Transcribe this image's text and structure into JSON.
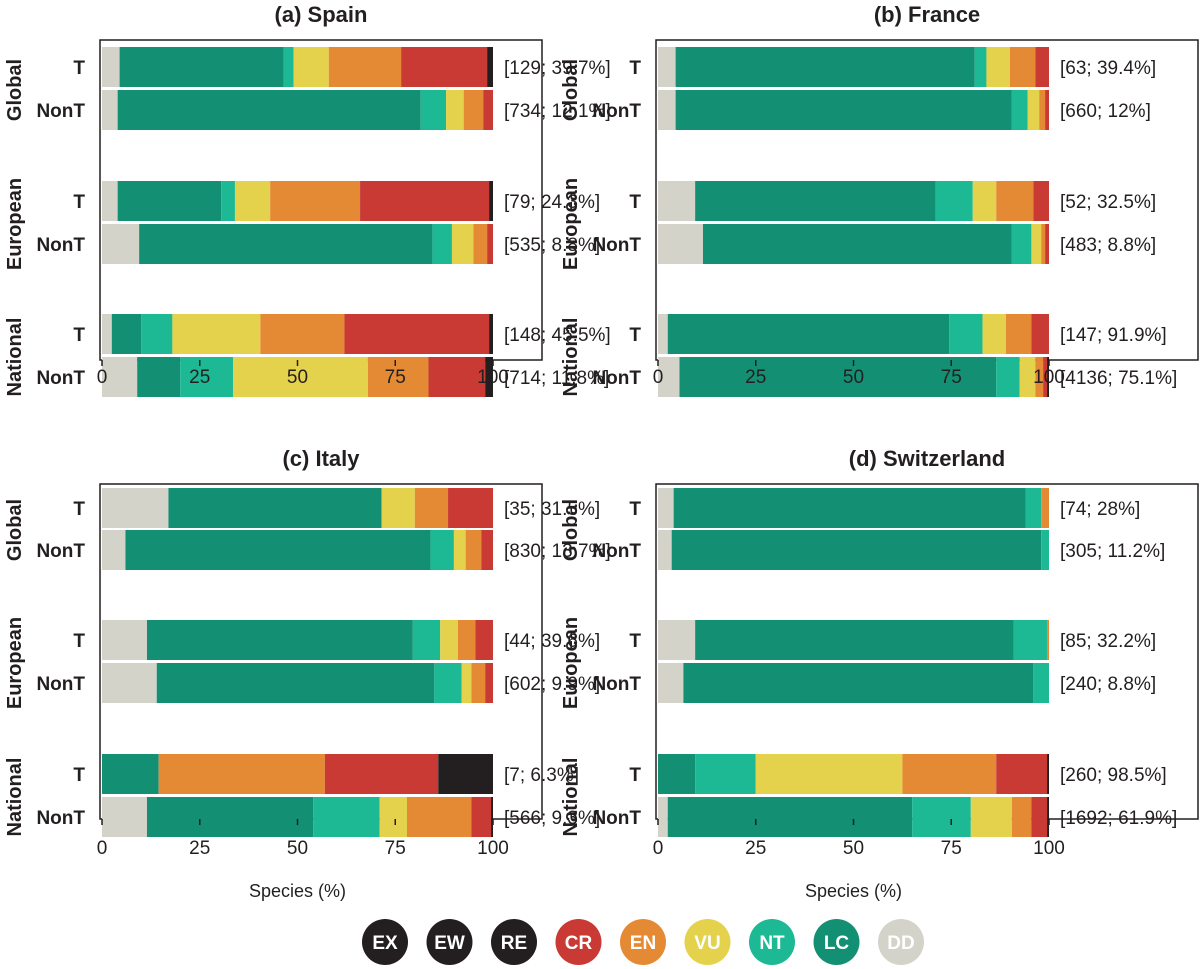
{
  "colors": {
    "EX": "#231f20",
    "EW": "#231f20",
    "RE": "#231f20",
    "CR": "#c93a34",
    "EN": "#e58a34",
    "VU": "#e5d24c",
    "NT": "#1db894",
    "LC": "#139073",
    "DD": "#d4d3c9"
  },
  "legend": [
    "EX",
    "EW",
    "RE",
    "CR",
    "EN",
    "VU",
    "NT",
    "LC",
    "DD"
  ],
  "xlabel": "Species (%)",
  "chart_data": [
    {
      "type": "bar",
      "stacked": true,
      "orientation": "horizontal",
      "title": "(a) Spain",
      "xlabel": "",
      "xlim": [
        0,
        100
      ],
      "xticks": [
        "0",
        "25",
        "50",
        "75",
        "100"
      ],
      "groups": [
        {
          "label": "Global",
          "bars": [
            {
              "label": "T",
              "note": "[129; 39.7%]",
              "values": {
                "DD": 4.5,
                "LC": 42,
                "NT": 2.5,
                "VU": 9,
                "EN": 18.5,
                "CR": 22,
                "RE": 1.5
              }
            },
            {
              "label": "NonT",
              "note": "[734; 12.1%]",
              "values": {
                "DD": 4,
                "LC": 77.5,
                "NT": 6.5,
                "VU": 4.5,
                "EN": 5,
                "CR": 2.5
              }
            }
          ]
        },
        {
          "label": "European",
          "bars": [
            {
              "label": "T",
              "note": "[79; 24.3%]",
              "values": {
                "DD": 4,
                "LC": 26.5,
                "NT": 3.5,
                "VU": 9,
                "EN": 23,
                "CR": 33,
                "RE": 1
              }
            },
            {
              "label": "NonT",
              "note": "[535; 8.8%]",
              "values": {
                "DD": 9.5,
                "LC": 75,
                "NT": 5,
                "VU": 5.5,
                "EN": 3.5,
                "CR": 1.5
              }
            }
          ]
        },
        {
          "label": "National",
          "bars": [
            {
              "label": "T",
              "note": "[148; 45.5%]",
              "values": {
                "DD": 2.5,
                "LC": 7.5,
                "NT": 8,
                "VU": 22.5,
                "EN": 21.5,
                "CR": 37,
                "RE": 1
              }
            },
            {
              "label": "NonT",
              "note": "[714; 11.8%]",
              "values": {
                "DD": 9,
                "LC": 11,
                "NT": 13.5,
                "VU": 34.5,
                "EN": 15.5,
                "CR": 14.5,
                "RE": 2
              }
            }
          ]
        }
      ]
    },
    {
      "type": "bar",
      "stacked": true,
      "orientation": "horizontal",
      "title": "(b) France",
      "xlabel": "",
      "xlim": [
        0,
        100
      ],
      "xticks": [
        "0",
        "25",
        "50",
        "75",
        "100"
      ],
      "groups": [
        {
          "label": "Global",
          "bars": [
            {
              "label": "T",
              "note": "[63; 39.4%]",
              "values": {
                "DD": 4.5,
                "LC": 76.5,
                "NT": 3,
                "VU": 6,
                "EN": 6.5,
                "CR": 3.5
              }
            },
            {
              "label": "NonT",
              "note": "[660; 12%]",
              "values": {
                "DD": 4.5,
                "LC": 86,
                "NT": 4,
                "VU": 3,
                "EN": 1.5,
                "CR": 1
              }
            }
          ]
        },
        {
          "label": "European",
          "bars": [
            {
              "label": "T",
              "note": "[52; 32.5%]",
              "values": {
                "DD": 9.5,
                "LC": 61.5,
                "NT": 9.5,
                "VU": 6,
                "EN": 9.5,
                "CR": 4
              }
            },
            {
              "label": "NonT",
              "note": "[483; 8.8%]",
              "values": {
                "DD": 11.5,
                "LC": 79,
                "NT": 5,
                "VU": 2.5,
                "EN": 1,
                "CR": 1
              }
            }
          ]
        },
        {
          "label": "National",
          "bars": [
            {
              "label": "T",
              "note": "[147; 91.9%]",
              "values": {
                "DD": 2.5,
                "LC": 72,
                "NT": 8.5,
                "VU": 6,
                "EN": 6.5,
                "CR": 4.5
              }
            },
            {
              "label": "NonT",
              "note": "[4136; 75.1%]",
              "values": {
                "DD": 5.5,
                "LC": 81,
                "NT": 6,
                "VU": 4,
                "EN": 2,
                "CR": 1,
                "RE": 0.5
              }
            }
          ]
        }
      ]
    },
    {
      "type": "bar",
      "stacked": true,
      "orientation": "horizontal",
      "title": "(c) Italy",
      "xlabel": "Species (%)",
      "xlim": [
        0,
        100
      ],
      "xticks": [
        "0",
        "25",
        "50",
        "75",
        "100"
      ],
      "groups": [
        {
          "label": "Global",
          "bars": [
            {
              "label": "T",
              "note": "[35; 31.5%]",
              "values": {
                "DD": 17,
                "LC": 54.5,
                "VU": 8.5,
                "EN": 8.5,
                "CR": 11.5
              }
            },
            {
              "label": "NonT",
              "note": "[830; 13.7%]",
              "values": {
                "DD": 6,
                "LC": 78,
                "NT": 6,
                "VU": 3,
                "EN": 4,
                "CR": 3
              }
            }
          ]
        },
        {
          "label": "European",
          "bars": [
            {
              "label": "T",
              "note": "[44; 39.6%]",
              "values": {
                "DD": 11.5,
                "LC": 68,
                "NT": 7,
                "VU": 4.5,
                "EN": 4.5,
                "CR": 4.5
              }
            },
            {
              "label": "NonT",
              "note": "[602; 9.9%]",
              "values": {
                "DD": 14,
                "LC": 71,
                "NT": 7,
                "VU": 2.5,
                "EN": 3.5,
                "CR": 2
              }
            }
          ]
        },
        {
          "label": "National",
          "bars": [
            {
              "label": "T",
              "note": "[7; 6.3%]",
              "values": {
                "LC": 14.5,
                "EN": 42.5,
                "CR": 29,
                "RE": 14
              }
            },
            {
              "label": "NonT",
              "note": "[566; 9.3%]",
              "values": {
                "DD": 11.5,
                "LC": 42.5,
                "NT": 17,
                "VU": 7,
                "EN": 16.5,
                "CR": 5,
                "RE": 0.5
              }
            }
          ]
        }
      ]
    },
    {
      "type": "bar",
      "stacked": true,
      "orientation": "horizontal",
      "title": "(d) Switzerland",
      "xlabel": "Species (%)",
      "xlim": [
        0,
        100
      ],
      "xticks": [
        "0",
        "25",
        "50",
        "75",
        "100"
      ],
      "groups": [
        {
          "label": "Global",
          "bars": [
            {
              "label": "T",
              "note": "[74; 28%]",
              "values": {
                "DD": 4,
                "LC": 90,
                "NT": 4,
                "EN": 2
              }
            },
            {
              "label": "NonT",
              "note": "[305; 11.2%]",
              "values": {
                "DD": 3.5,
                "LC": 94.5,
                "NT": 2
              }
            }
          ]
        },
        {
          "label": "European",
          "bars": [
            {
              "label": "T",
              "note": "[85; 32.2%]",
              "values": {
                "DD": 9.5,
                "LC": 81.5,
                "NT": 8.5,
                "EN": 0.5
              }
            },
            {
              "label": "NonT",
              "note": "[240; 8.8%]",
              "values": {
                "DD": 6.5,
                "LC": 89.5,
                "NT": 4
              }
            }
          ]
        },
        {
          "label": "National",
          "bars": [
            {
              "label": "T",
              "note": "[260; 98.5%]",
              "values": {
                "LC": 9.5,
                "NT": 15.5,
                "VU": 37.5,
                "EN": 24,
                "CR": 13,
                "RE": 0.5
              }
            },
            {
              "label": "NonT",
              "note": "[1692; 61.9%]",
              "values": {
                "DD": 2.5,
                "LC": 62.5,
                "NT": 15,
                "VU": 10.5,
                "EN": 5,
                "CR": 4,
                "RE": 0.5
              }
            }
          ]
        }
      ]
    }
  ]
}
